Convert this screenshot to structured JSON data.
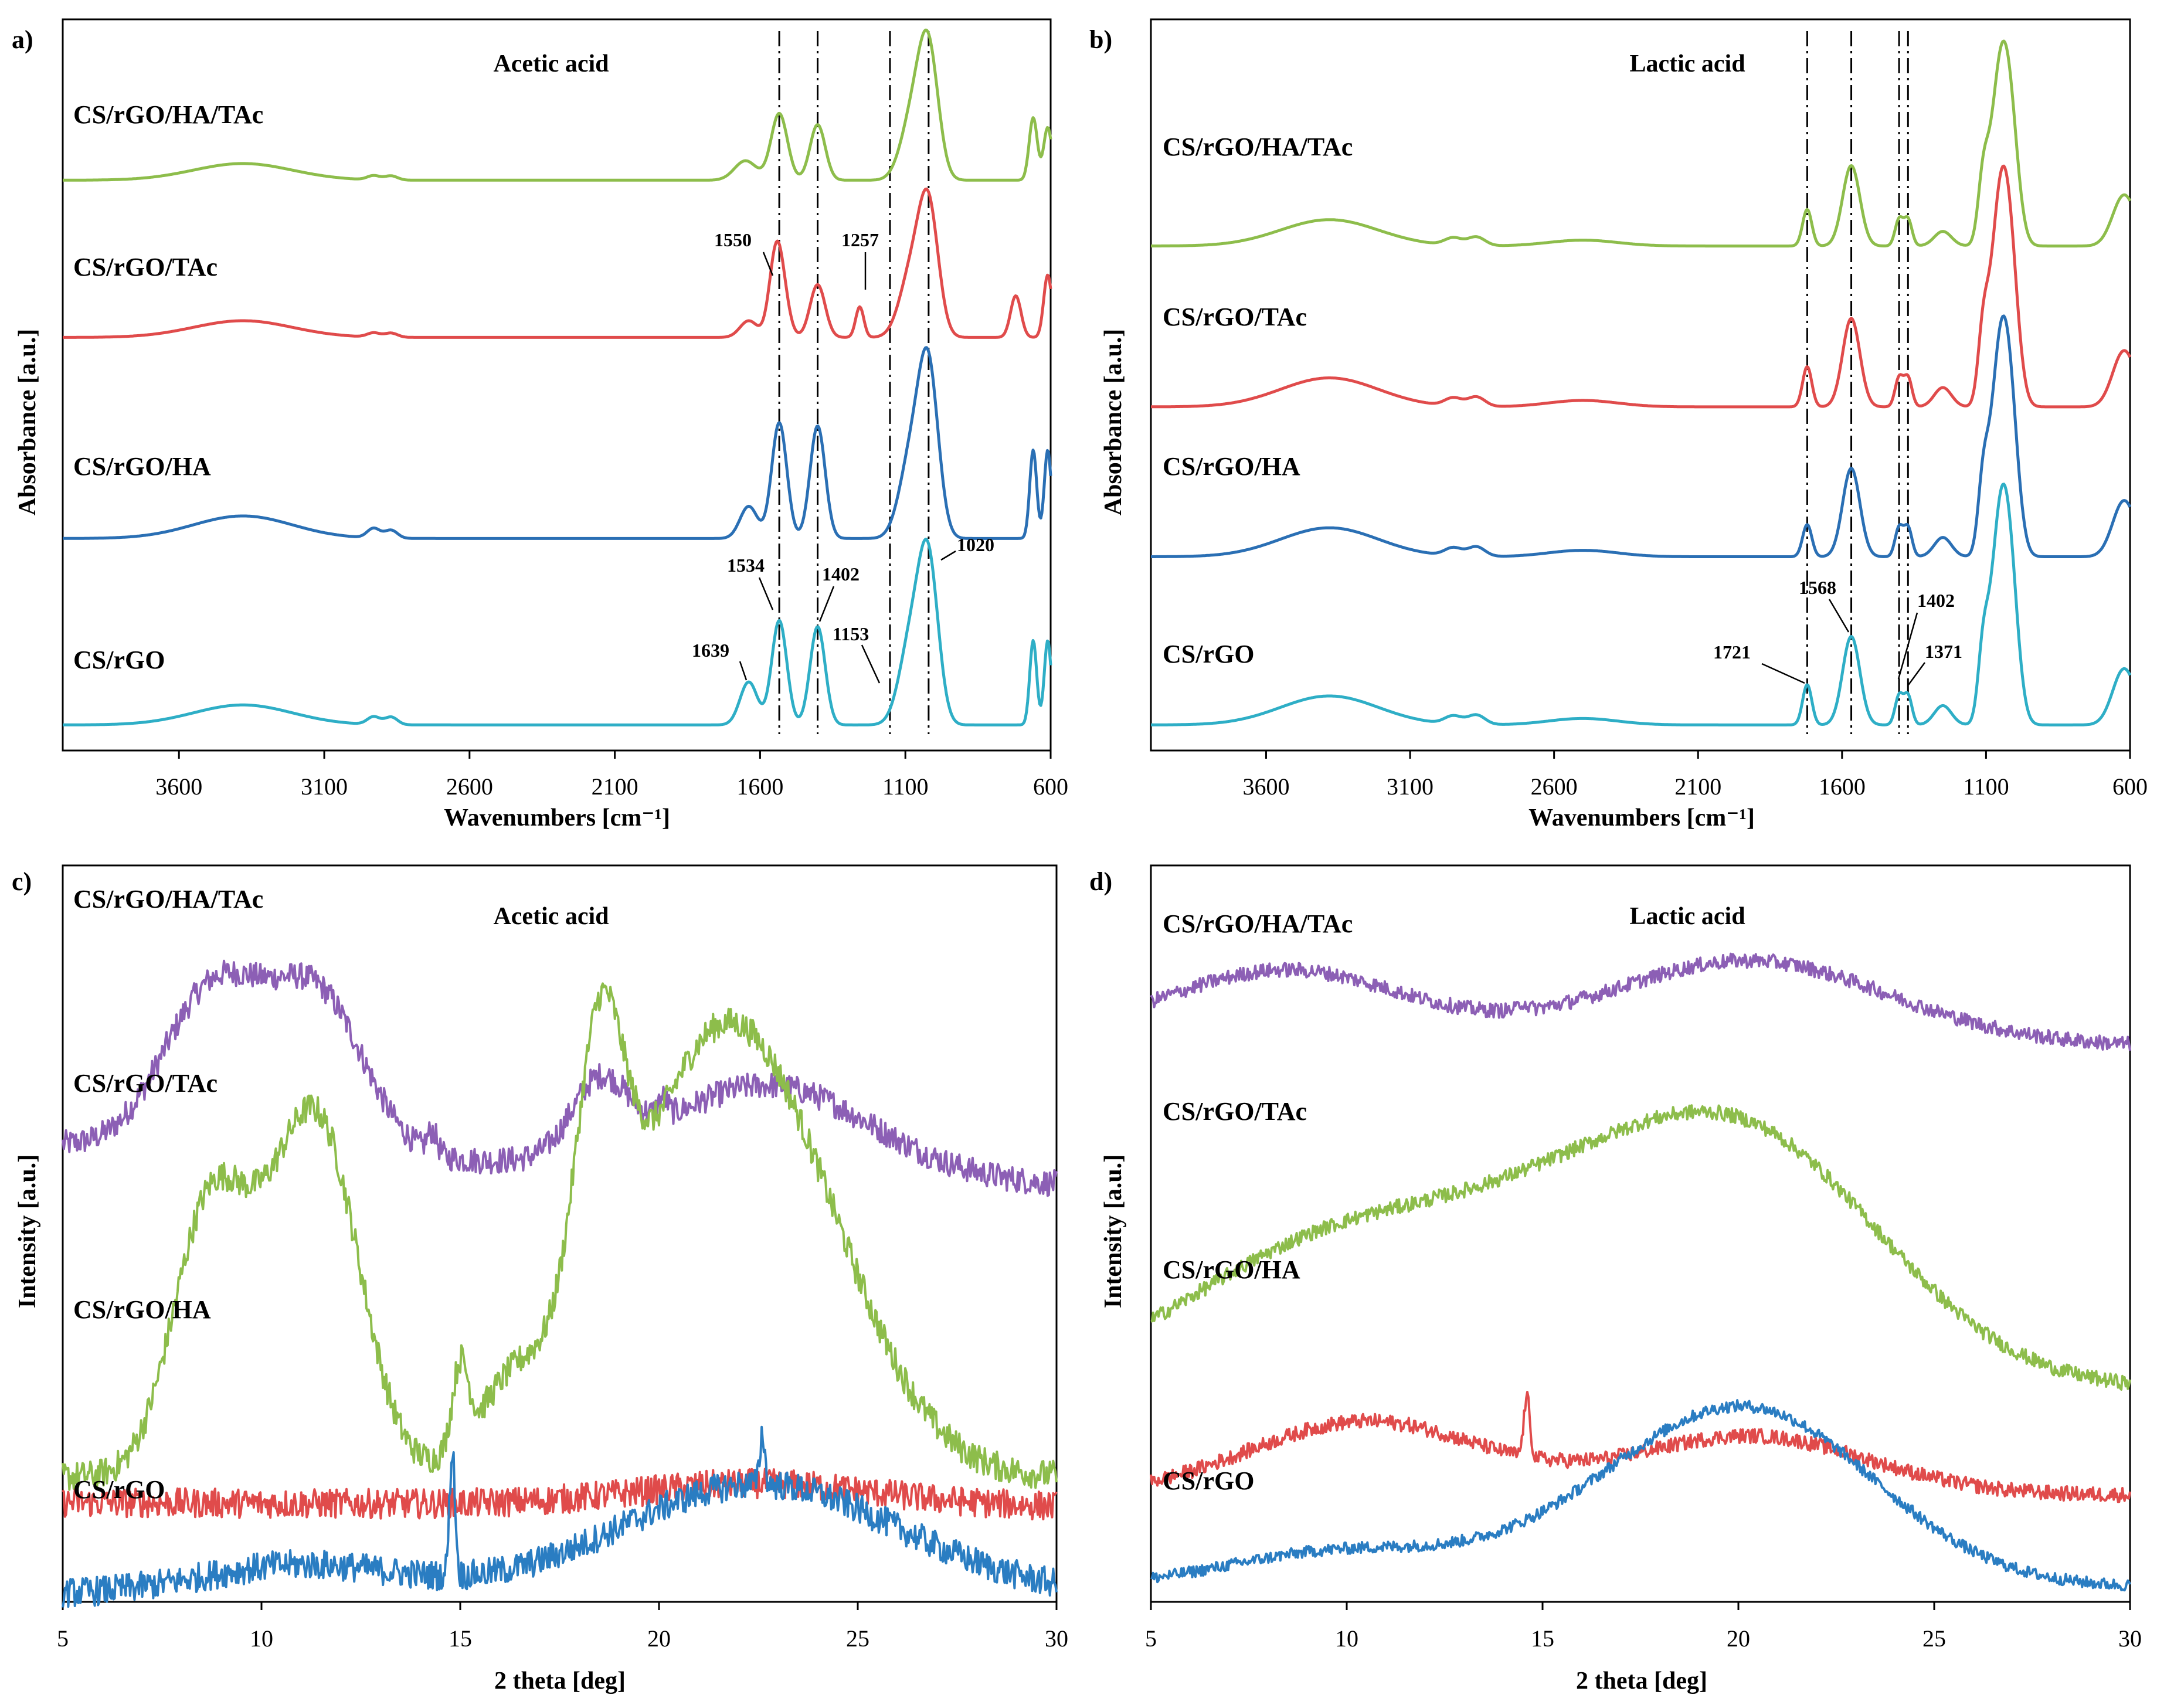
{
  "chart_data": [
    {
      "panel": "a)",
      "type": "line",
      "title": "Acetic acid",
      "xlabel": "Wavenumbers [cm⁻¹]",
      "ylabel": "Absorbance [a.u.]",
      "xlim": [
        4000,
        600
      ],
      "reversed_x": true,
      "xticks": [
        "3600",
        "3100",
        "2600",
        "2100",
        "1600",
        "1100",
        "600"
      ],
      "xtick_values": [
        3600,
        3100,
        2600,
        2100,
        1600,
        1100,
        600
      ],
      "reference_lines": [
        1534,
        1402,
        1153,
        1020
      ],
      "series": [
        {
          "name": "CS/rGO/HA/TAc",
          "color": "#8DBD4B",
          "baseline": 0.78,
          "scale": 0.19,
          "peaks": [
            [
              3380,
              0.12,
              170
            ],
            [
              2930,
              0.03,
              22
            ],
            [
              2870,
              0.03,
              22
            ],
            [
              1650,
              0.14,
              38
            ],
            [
              1534,
              0.48,
              28
            ],
            [
              1402,
              0.4,
              26
            ],
            [
              1020,
              0.88,
              34
            ],
            [
              1075,
              0.45,
              40
            ],
            [
              660,
              0.45,
              14
            ],
            [
              610,
              0.38,
              14
            ]
          ]
        },
        {
          "name": "CS/rGO/TAc",
          "color": "#E04B4B",
          "baseline": 0.565,
          "scale": 0.19,
          "peaks": [
            [
              3380,
              0.12,
              170
            ],
            [
              2930,
              0.03,
              22
            ],
            [
              2870,
              0.03,
              22
            ],
            [
              1639,
              0.12,
              30
            ],
            [
              1550,
              0.25,
              22
            ],
            [
              1534,
              0.48,
              26
            ],
            [
              1402,
              0.38,
              26
            ],
            [
              1257,
              0.22,
              14
            ],
            [
              1020,
              0.9,
              34
            ],
            [
              1080,
              0.45,
              40
            ],
            [
              720,
              0.3,
              18
            ],
            [
              610,
              0.45,
              14
            ]
          ]
        },
        {
          "name": "CS/rGO/HA",
          "color": "#2A6FB4",
          "baseline": 0.29,
          "scale": 0.22,
          "peaks": [
            [
              3380,
              0.14,
              170
            ],
            [
              2930,
              0.06,
              22
            ],
            [
              2870,
              0.05,
              22
            ],
            [
              1639,
              0.2,
              30
            ],
            [
              1534,
              0.72,
              26
            ],
            [
              1402,
              0.7,
              26
            ],
            [
              1020,
              1.0,
              34
            ],
            [
              1080,
              0.5,
              40
            ],
            [
              660,
              0.55,
              12
            ],
            [
              610,
              0.55,
              12
            ]
          ]
        },
        {
          "name": "CS/rGO",
          "color": "#2EAEC6",
          "baseline": 0.035,
          "scale": 0.21,
          "peaks": [
            [
              3380,
              0.13,
              170
            ],
            [
              2930,
              0.05,
              22
            ],
            [
              2870,
              0.05,
              22
            ],
            [
              1639,
              0.28,
              30
            ],
            [
              1534,
              0.68,
              26
            ],
            [
              1402,
              0.64,
              26
            ],
            [
              1020,
              1.0,
              34
            ],
            [
              1080,
              0.55,
              40
            ],
            [
              660,
              0.55,
              12
            ],
            [
              610,
              0.55,
              12
            ]
          ]
        }
      ],
      "annotations": [
        "1550",
        "1257",
        "1534",
        "1402",
        "1020",
        "1639",
        "1153"
      ]
    },
    {
      "panel": "b)",
      "type": "line",
      "title": "Lactic acid",
      "xlabel": "Wavenumbers [cm⁻¹]",
      "ylabel": "Absorbance [a.u.]",
      "xlim": [
        4000,
        600
      ],
      "reversed_x": true,
      "xticks": [
        "3600",
        "3100",
        "2600",
        "2100",
        "1600",
        "1100",
        "600"
      ],
      "xtick_values": [
        3600,
        3100,
        2600,
        2100,
        1600,
        1100,
        600
      ],
      "reference_lines": [
        1721,
        1568,
        1402,
        1371
      ],
      "series": [
        {
          "name": "CS/rGO/HA/TAc",
          "color": "#8DBD4B",
          "baseline": 0.69,
          "scale": 0.2,
          "peaks": [
            [
              3380,
              0.18,
              170
            ],
            [
              2950,
              0.05,
              30
            ],
            [
              2870,
              0.06,
              30
            ],
            [
              2500,
              0.04,
              120
            ],
            [
              1721,
              0.25,
              16
            ],
            [
              1568,
              0.55,
              30
            ],
            [
              1402,
              0.18,
              14
            ],
            [
              1371,
              0.18,
              14
            ],
            [
              1250,
              0.1,
              30
            ],
            [
              1060,
              0.85,
              30
            ],
            [
              1020,
              0.9,
              30
            ],
            [
              1110,
              0.4,
              18
            ],
            [
              620,
              0.35,
              40
            ]
          ]
        },
        {
          "name": "CS/rGO/TAc",
          "color": "#E04B4B",
          "baseline": 0.47,
          "scale": 0.22,
          "peaks": [
            [
              3380,
              0.18,
              170
            ],
            [
              2950,
              0.05,
              30
            ],
            [
              2870,
              0.06,
              30
            ],
            [
              2500,
              0.04,
              120
            ],
            [
              1721,
              0.25,
              16
            ],
            [
              1568,
              0.55,
              30
            ],
            [
              1402,
              0.18,
              14
            ],
            [
              1371,
              0.18,
              14
            ],
            [
              1250,
              0.12,
              30
            ],
            [
              1060,
              0.92,
              30
            ],
            [
              1020,
              0.95,
              30
            ],
            [
              1110,
              0.4,
              18
            ],
            [
              620,
              0.35,
              40
            ]
          ]
        },
        {
          "name": "CS/rGO/HA",
          "color": "#2A6FB4",
          "baseline": 0.265,
          "scale": 0.22,
          "peaks": [
            [
              3380,
              0.18,
              170
            ],
            [
              2950,
              0.05,
              30
            ],
            [
              2870,
              0.06,
              30
            ],
            [
              2500,
              0.04,
              120
            ],
            [
              1721,
              0.2,
              16
            ],
            [
              1568,
              0.55,
              30
            ],
            [
              1402,
              0.18,
              14
            ],
            [
              1371,
              0.18,
              14
            ],
            [
              1250,
              0.12,
              30
            ],
            [
              1060,
              0.92,
              30
            ],
            [
              1020,
              0.95,
              30
            ],
            [
              1110,
              0.4,
              18
            ],
            [
              620,
              0.35,
              40
            ]
          ]
        },
        {
          "name": "CS/rGO",
          "color": "#2EAEC6",
          "baseline": 0.035,
          "scale": 0.22,
          "peaks": [
            [
              3380,
              0.18,
              170
            ],
            [
              2950,
              0.05,
              30
            ],
            [
              2870,
              0.06,
              30
            ],
            [
              2500,
              0.04,
              120
            ],
            [
              1721,
              0.25,
              16
            ],
            [
              1568,
              0.55,
              30
            ],
            [
              1402,
              0.18,
              14
            ],
            [
              1371,
              0.18,
              14
            ],
            [
              1250,
              0.12,
              30
            ],
            [
              1060,
              0.92,
              30
            ],
            [
              1020,
              0.95,
              30
            ],
            [
              1110,
              0.4,
              18
            ],
            [
              620,
              0.35,
              40
            ]
          ]
        }
      ],
      "annotations": [
        "1721",
        "1568",
        "1402",
        "1371"
      ]
    },
    {
      "panel": "c)",
      "type": "line",
      "title": "Acetic acid",
      "xlabel": "2 theta [deg]",
      "ylabel": "Intensity [a.u.]",
      "xlim": [
        5,
        30
      ],
      "xticks": [
        "5",
        "10",
        "15",
        "20",
        "25",
        "30"
      ],
      "xtick_values": [
        5,
        10,
        15,
        20,
        25,
        30
      ],
      "series": [
        {
          "name": "CS/rGO/HA/TAc",
          "color": "#8C5FB5",
          "baseline": 0.62,
          "slope": -0.18,
          "scale": 0.3,
          "noise": 0.018,
          "peaks": [
            [
              8.6,
              0.55,
              1.2
            ],
            [
              11.6,
              0.5,
              1.1
            ],
            [
              10.2,
              0.35,
              1.5
            ],
            [
              14.3,
              0.1,
              0.12
            ],
            [
              18.5,
              0.32,
              0.7
            ],
            [
              20.1,
              0.08,
              0.12
            ],
            [
              22.8,
              0.4,
              2.5
            ]
          ]
        },
        {
          "name": "CS/rGO/TAc",
          "color": "#8DBD4B",
          "baseline": 0.17,
          "slope": 0.0,
          "scale": 0.55,
          "noise": 0.02,
          "peaks": [
            [
              8.6,
              0.55,
              0.9
            ],
            [
              11.6,
              0.65,
              1.0
            ],
            [
              10.3,
              0.4,
              1.2
            ],
            [
              15.0,
              0.2,
              0.2
            ],
            [
              16.4,
              0.2,
              1.0
            ],
            [
              18.5,
              0.72,
              0.6
            ],
            [
              20.5,
              0.55,
              2.0
            ],
            [
              22.8,
              0.75,
              2.2
            ]
          ]
        },
        {
          "name": "CS/rGO/HA",
          "color": "#E04B4B",
          "baseline": 0.135,
          "slope": -0.02,
          "scale": 0.03,
          "noise": 0.02,
          "peaks": [
            [
              22.5,
              1.0,
              3.0
            ]
          ]
        },
        {
          "name": "CS/rGO",
          "color": "#2A7DC2",
          "baseline": 0.01,
          "slope": 0.0,
          "scale": 0.2,
          "noise": 0.02,
          "peaks": [
            [
              11.0,
              0.2,
              2.5
            ],
            [
              14.8,
              0.85,
              0.07
            ],
            [
              22.5,
              0.75,
              3.5
            ],
            [
              22.6,
              0.35,
              0.06
            ]
          ]
        }
      ]
    },
    {
      "panel": "d)",
      "type": "line",
      "title": "Lactic acid",
      "xlabel": "2 theta [deg]",
      "ylabel": "Intensity [a.u.]",
      "xlim": [
        5,
        30
      ],
      "xticks": [
        "5",
        "10",
        "15",
        "20",
        "25",
        "30"
      ],
      "xtick_values": [
        5,
        10,
        15,
        20,
        25,
        30
      ],
      "series": [
        {
          "name": "CS/rGO/HA/TAc",
          "color": "#8C5FB5",
          "baseline": 0.77,
          "slope": -0.05,
          "scale": 0.2,
          "noise": 0.01,
          "peaks": [
            [
              8.5,
              0.45,
              3.0
            ],
            [
              20.3,
              0.55,
              3.5
            ],
            [
              14.5,
              0.05,
              0.1
            ]
          ]
        },
        {
          "name": "CS/rGO/TAc",
          "color": "#8DBD4B",
          "baseline": 0.29,
          "slope": 0.0,
          "scale": 0.45,
          "noise": 0.01,
          "peaks": [
            [
              10.0,
              0.45,
              4.0
            ],
            [
              20.3,
              0.72,
              3.5
            ],
            [
              15.5,
              0.25,
              3.0
            ]
          ]
        },
        {
          "name": "CS/rGO/HA",
          "color": "#E04B4B",
          "baseline": 0.145,
          "slope": 0.0,
          "scale": 0.2,
          "noise": 0.01,
          "peaks": [
            [
              10.5,
              0.5,
              3.0
            ],
            [
              14.6,
              0.4,
              0.08
            ],
            [
              20.3,
              0.4,
              3.0
            ]
          ]
        },
        {
          "name": "CS/rGO",
          "color": "#2A7DC2",
          "baseline": 0.02,
          "slope": 0.0,
          "scale": 0.33,
          "noise": 0.008,
          "peaks": [
            [
              10.0,
              0.15,
              3.0
            ],
            [
              20.3,
              0.72,
              3.2
            ],
            [
              16.0,
              0.1,
              2.5
            ]
          ]
        }
      ]
    }
  ]
}
